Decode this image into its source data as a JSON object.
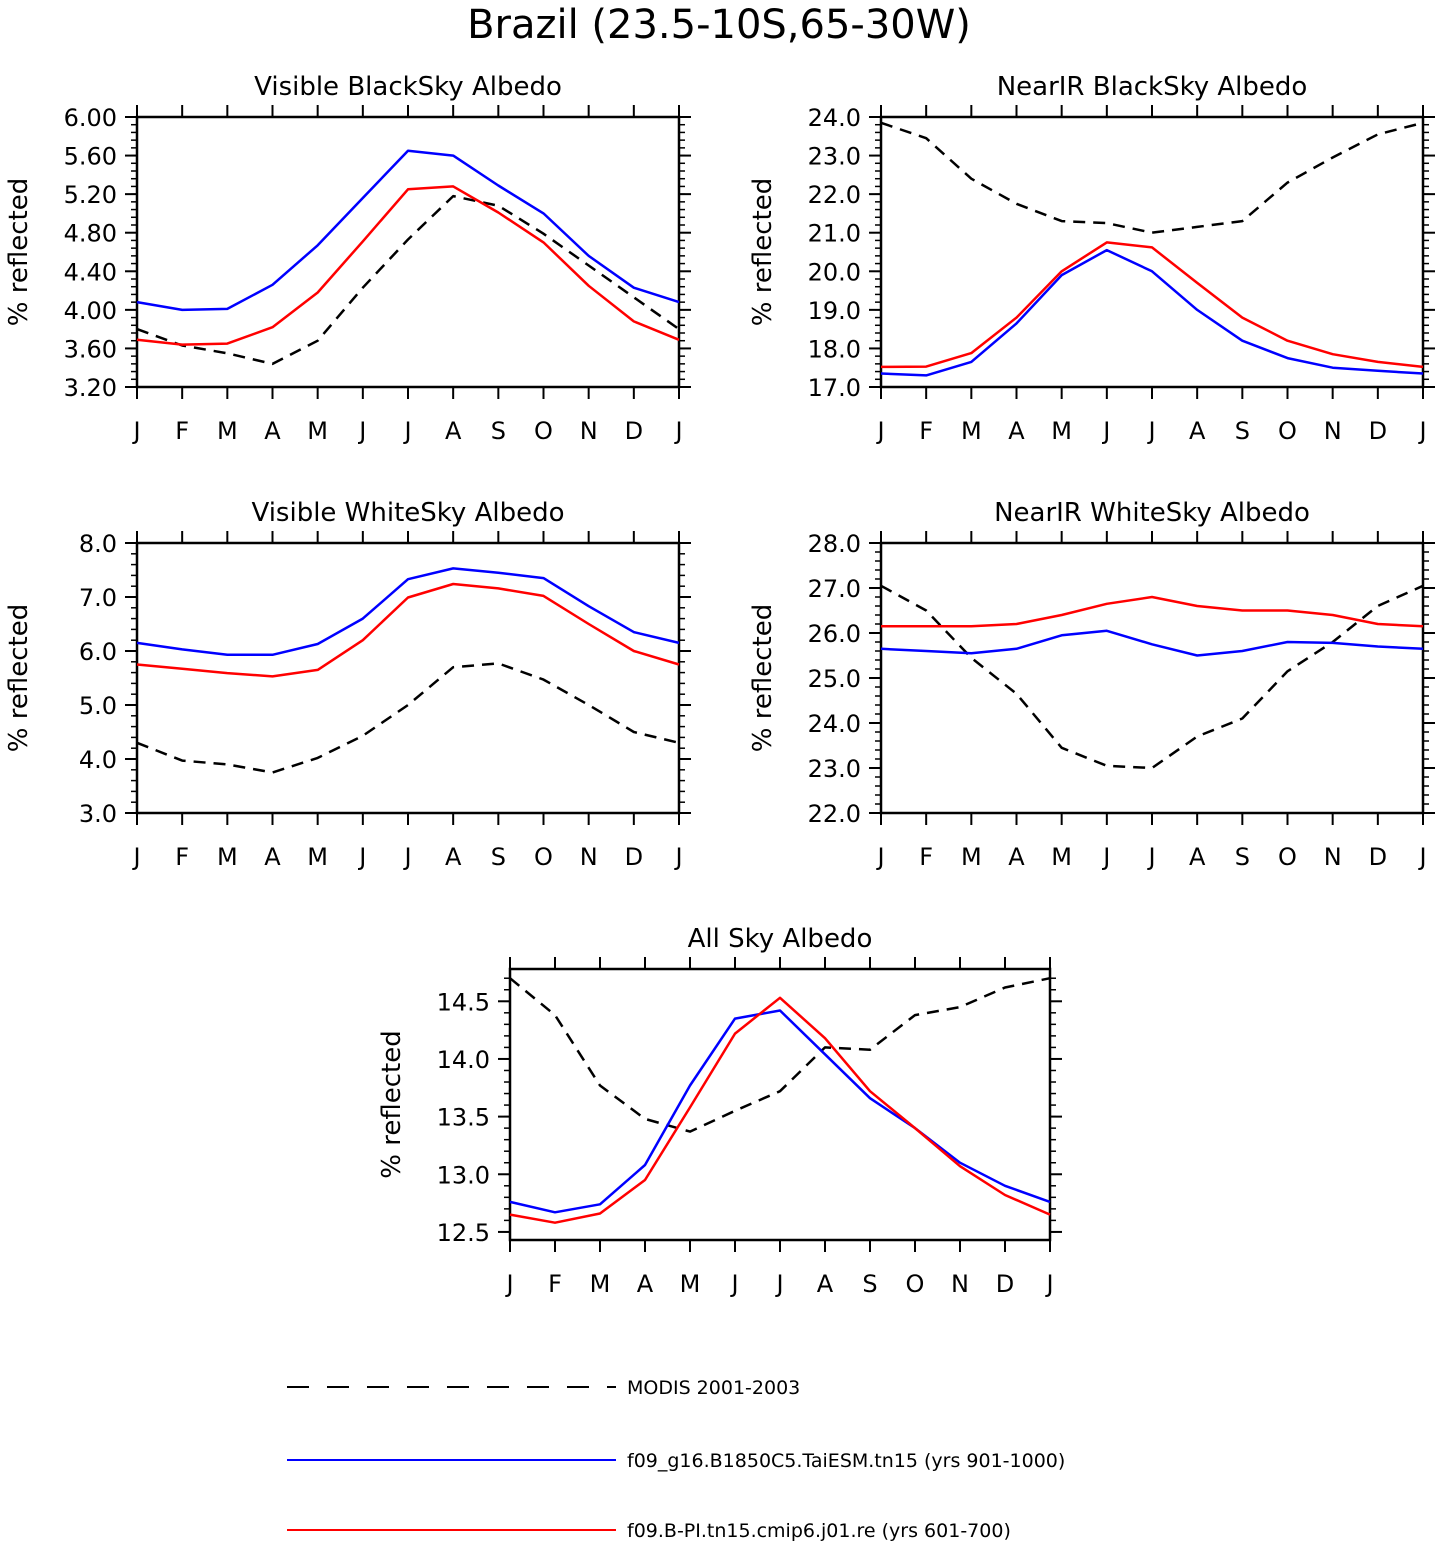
{
  "title": "Brazil (23.5-10S,65-30W)",
  "months": [
    "J",
    "F",
    "M",
    "A",
    "M",
    "J",
    "J",
    "A",
    "S",
    "O",
    "N",
    "D",
    "J"
  ],
  "legend": [
    {
      "label": "MODIS 2001-2003",
      "color": "#000000",
      "dashed": true
    },
    {
      "label": "f09_g16.B1850C5.TaiESM.tn15 (yrs 901-1000)",
      "color": "#0000ff",
      "dashed": false
    },
    {
      "label": "f09.B-PI.tn15.cmip6.j01.re (yrs 601-700)",
      "color": "#ff0000",
      "dashed": false
    }
  ],
  "chart_data": [
    {
      "type": "line",
      "title": "Visible BlackSky Albedo",
      "ylabel": "% reflected",
      "ylim": [
        3.2,
        6.0
      ],
      "yticks": [
        3.2,
        3.6,
        4.0,
        4.4,
        4.8,
        5.2,
        5.6,
        6.0
      ],
      "ytick_labels": [
        "3.20",
        "3.60",
        "4.00",
        "4.40",
        "4.80",
        "5.20",
        "5.60",
        "6.00"
      ],
      "categories": [
        "J",
        "F",
        "M",
        "A",
        "M",
        "J",
        "J",
        "A",
        "S",
        "O",
        "N",
        "D",
        "J"
      ],
      "series": [
        {
          "name": "MODIS 2001-2003",
          "color": "#000000",
          "dashed": true,
          "values": [
            3.8,
            3.63,
            3.55,
            3.44,
            3.68,
            4.23,
            4.73,
            5.18,
            5.08,
            4.79,
            4.46,
            4.13,
            3.8
          ]
        },
        {
          "name": "f09_g16.B1850C5.TaiESM.tn15 (yrs 901-1000)",
          "color": "#0000ff",
          "dashed": false,
          "values": [
            4.08,
            4.0,
            4.01,
            4.26,
            4.67,
            5.16,
            5.65,
            5.6,
            5.29,
            5.0,
            4.56,
            4.23,
            4.08
          ]
        },
        {
          "name": "f09.B-PI.tn15.cmip6.j01.re (yrs 601-700)",
          "color": "#ff0000",
          "dashed": false,
          "values": [
            3.69,
            3.64,
            3.65,
            3.82,
            4.18,
            4.71,
            5.25,
            5.28,
            5.01,
            4.7,
            4.25,
            3.88,
            3.69
          ]
        }
      ]
    },
    {
      "type": "line",
      "title": "NearIR BlackSky Albedo",
      "ylabel": "% reflected",
      "ylim": [
        17.0,
        24.0
      ],
      "yticks": [
        17,
        18,
        19,
        20,
        21,
        22,
        23,
        24
      ],
      "ytick_labels": [
        "17.0",
        "18.0",
        "19.0",
        "20.0",
        "21.0",
        "22.0",
        "23.0",
        "24.0"
      ],
      "categories": [
        "J",
        "F",
        "M",
        "A",
        "M",
        "J",
        "J",
        "A",
        "S",
        "O",
        "N",
        "D",
        "J"
      ],
      "series": [
        {
          "name": "MODIS 2001-2003",
          "color": "#000000",
          "dashed": true,
          "values": [
            23.85,
            23.45,
            22.4,
            21.75,
            21.3,
            21.25,
            21.0,
            21.15,
            21.3,
            22.3,
            22.95,
            23.55,
            23.85
          ]
        },
        {
          "name": "f09_g16.B1850C5.TaiESM.tn15 (yrs 901-1000)",
          "color": "#0000ff",
          "dashed": false,
          "values": [
            17.35,
            17.3,
            17.65,
            18.65,
            19.9,
            20.55,
            20.0,
            19.0,
            18.2,
            17.75,
            17.5,
            17.42,
            17.35
          ]
        },
        {
          "name": "f09.B-PI.tn15.cmip6.j01.re (yrs 601-700)",
          "color": "#ff0000",
          "dashed": false,
          "values": [
            17.52,
            17.53,
            17.88,
            18.8,
            20.0,
            20.75,
            20.62,
            19.7,
            18.8,
            18.2,
            17.85,
            17.65,
            17.52
          ]
        }
      ]
    },
    {
      "type": "line",
      "title": "Visible WhiteSky Albedo",
      "ylabel": "% reflected",
      "ylim": [
        3.0,
        8.0
      ],
      "yticks": [
        3,
        4,
        5,
        6,
        7,
        8
      ],
      "ytick_labels": [
        "3.0",
        "4.0",
        "5.0",
        "6.0",
        "7.0",
        "8.0"
      ],
      "categories": [
        "J",
        "F",
        "M",
        "A",
        "M",
        "J",
        "J",
        "A",
        "S",
        "O",
        "N",
        "D",
        "J"
      ],
      "series": [
        {
          "name": "MODIS 2001-2003",
          "color": "#000000",
          "dashed": true,
          "values": [
            4.3,
            3.97,
            3.9,
            3.75,
            4.02,
            4.43,
            5.0,
            5.7,
            5.77,
            5.47,
            5.0,
            4.5,
            4.3
          ]
        },
        {
          "name": "f09_g16.B1850C5.TaiESM.tn15 (yrs 901-1000)",
          "color": "#0000ff",
          "dashed": false,
          "values": [
            6.15,
            6.03,
            5.93,
            5.93,
            6.13,
            6.6,
            7.33,
            7.53,
            7.45,
            7.35,
            6.83,
            6.35,
            6.15
          ]
        },
        {
          "name": "f09.B-PI.tn15.cmip6.j01.re (yrs 601-700)",
          "color": "#ff0000",
          "dashed": false,
          "values": [
            5.75,
            5.67,
            5.59,
            5.53,
            5.65,
            6.2,
            6.99,
            7.24,
            7.16,
            7.02,
            6.5,
            6.0,
            5.75
          ]
        }
      ]
    },
    {
      "type": "line",
      "title": "NearIR WhiteSky Albedo",
      "ylabel": "% reflected",
      "ylim": [
        22.0,
        28.0
      ],
      "yticks": [
        22,
        23,
        24,
        25,
        26,
        27,
        28
      ],
      "ytick_labels": [
        "22.0",
        "23.0",
        "24.0",
        "25.0",
        "26.0",
        "27.0",
        "28.0"
      ],
      "categories": [
        "J",
        "F",
        "M",
        "A",
        "M",
        "J",
        "J",
        "A",
        "S",
        "O",
        "N",
        "D",
        "J"
      ],
      "series": [
        {
          "name": "MODIS 2001-2003",
          "color": "#000000",
          "dashed": true,
          "values": [
            27.05,
            26.5,
            25.45,
            24.65,
            23.45,
            23.05,
            23.0,
            23.7,
            24.1,
            25.15,
            25.8,
            26.6,
            27.05
          ]
        },
        {
          "name": "f09_g16.B1850C5.TaiESM.tn15 (yrs 901-1000)",
          "color": "#0000ff",
          "dashed": false,
          "values": [
            25.65,
            25.6,
            25.55,
            25.65,
            25.95,
            26.05,
            25.75,
            25.5,
            25.6,
            25.8,
            25.78,
            25.7,
            25.65
          ]
        },
        {
          "name": "f09.B-PI.tn15.cmip6.j01.re (yrs 601-700)",
          "color": "#ff0000",
          "dashed": false,
          "values": [
            26.15,
            26.15,
            26.15,
            26.2,
            26.4,
            26.65,
            26.8,
            26.6,
            26.5,
            26.5,
            26.4,
            26.2,
            26.15
          ]
        }
      ]
    },
    {
      "type": "line",
      "title": "All Sky Albedo",
      "ylabel": "% reflected",
      "ylim": [
        12.43,
        14.78
      ],
      "yticks": [
        12.5,
        13.0,
        13.5,
        14.0,
        14.5
      ],
      "ytick_labels": [
        "12.5",
        "13.0",
        "13.5",
        "14.0",
        "14.5"
      ],
      "categories": [
        "J",
        "F",
        "M",
        "A",
        "M",
        "J",
        "J",
        "A",
        "S",
        "O",
        "N",
        "D",
        "J"
      ],
      "series": [
        {
          "name": "MODIS 2001-2003",
          "color": "#000000",
          "dashed": true,
          "values": [
            14.7,
            14.38,
            13.77,
            13.48,
            13.37,
            13.55,
            13.72,
            14.1,
            14.08,
            14.38,
            14.45,
            14.62,
            14.7
          ]
        },
        {
          "name": "f09_g16.B1850C5.TaiESM.tn15 (yrs 901-1000)",
          "color": "#0000ff",
          "dashed": false,
          "values": [
            12.76,
            12.67,
            12.74,
            13.08,
            13.77,
            14.35,
            14.42,
            14.04,
            13.66,
            13.4,
            13.1,
            12.9,
            12.76
          ]
        },
        {
          "name": "f09.B-PI.tn15.cmip6.j01.re (yrs 601-700)",
          "color": "#ff0000",
          "dashed": false,
          "values": [
            12.65,
            12.58,
            12.66,
            12.95,
            13.58,
            14.22,
            14.53,
            14.18,
            13.72,
            13.4,
            13.07,
            12.82,
            12.65
          ]
        }
      ]
    }
  ]
}
